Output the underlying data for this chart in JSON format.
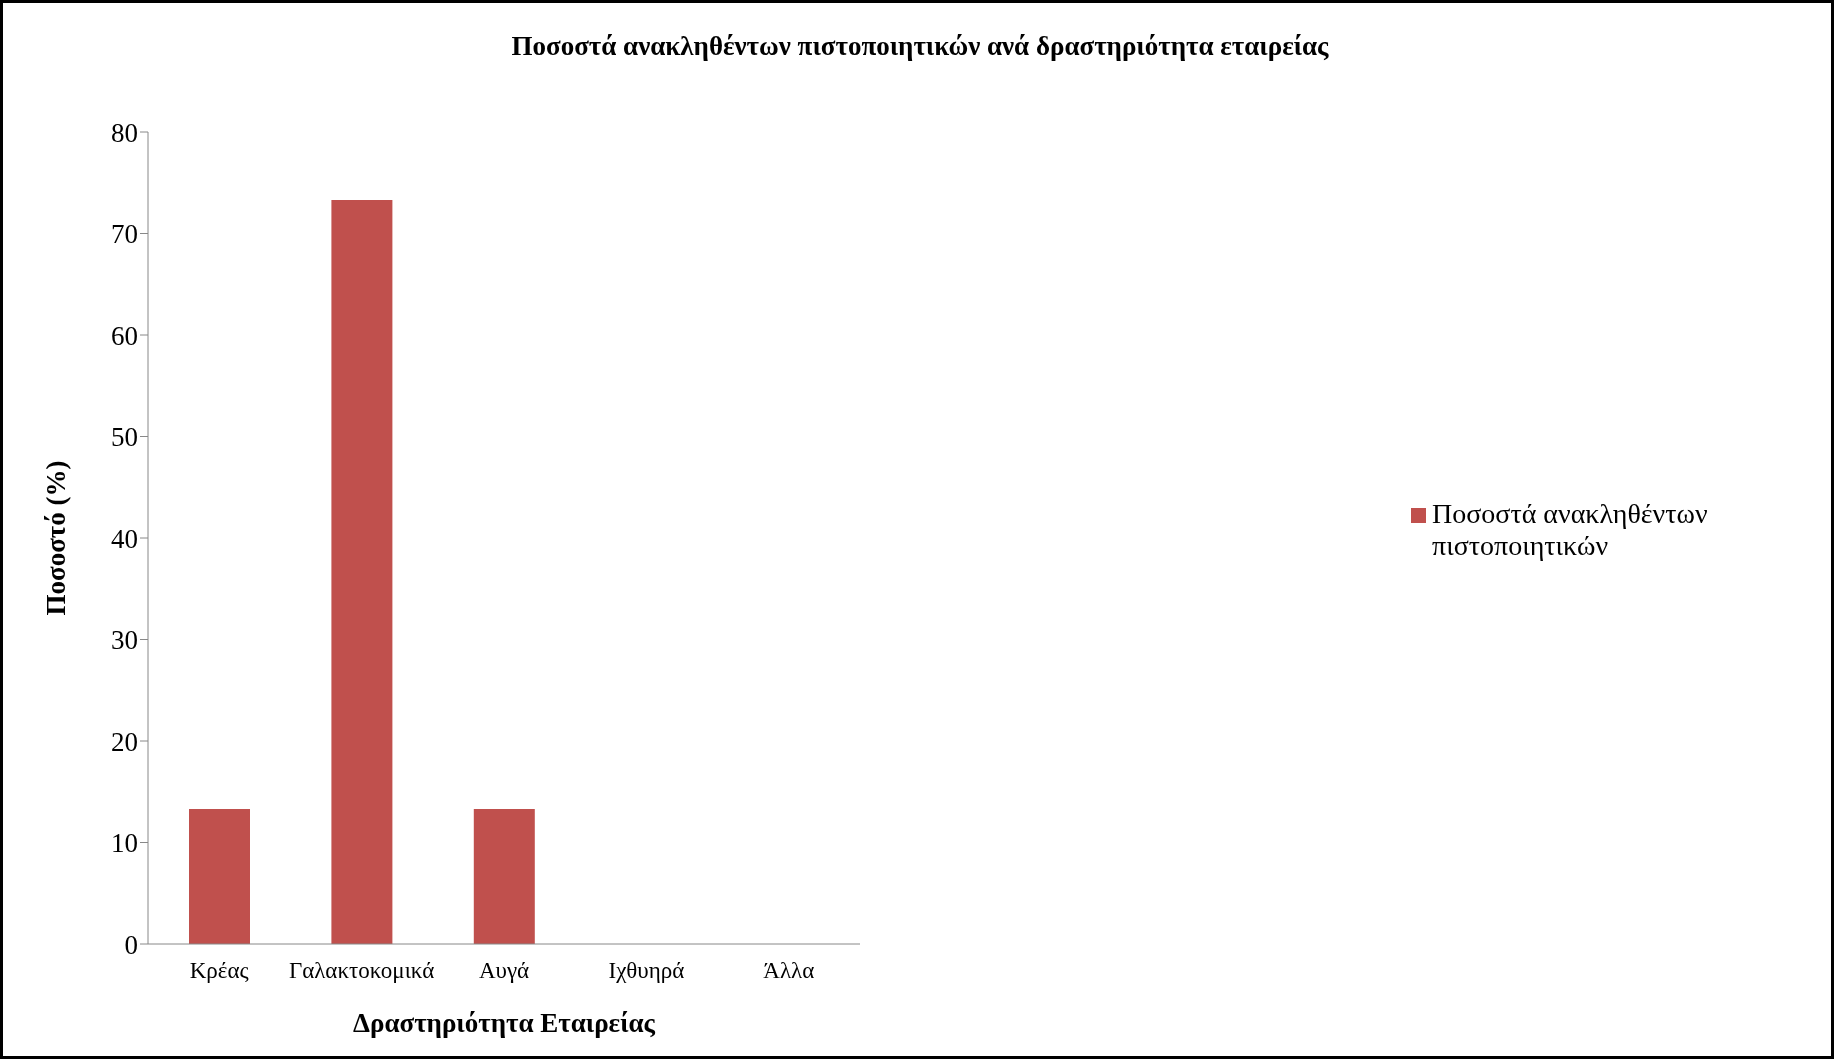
{
  "chart_data": {
    "type": "bar",
    "title": "Ποσοστά ανακληθέντων πιστοποιητικών ανά δραστηριότητα εταιρείας",
    "xlabel": "Δραστηριότητα Εταιρείας",
    "ylabel": "Ποσοστό (%)",
    "categories": [
      "Κρέας",
      "Γαλακτοκομικά",
      "Αυγά",
      "Ιχθυηρά",
      "Άλλα"
    ],
    "series": [
      {
        "name": "Ποσοστά ανακληθέντων πιστοποιητικών",
        "color": "#c0504d",
        "values": [
          13.3,
          73.3,
          13.3,
          0,
          0
        ]
      }
    ],
    "ylim": [
      0,
      80
    ],
    "yticks": [
      0,
      10,
      20,
      30,
      40,
      50,
      60,
      70,
      80
    ],
    "grid": false,
    "legend": "right"
  }
}
